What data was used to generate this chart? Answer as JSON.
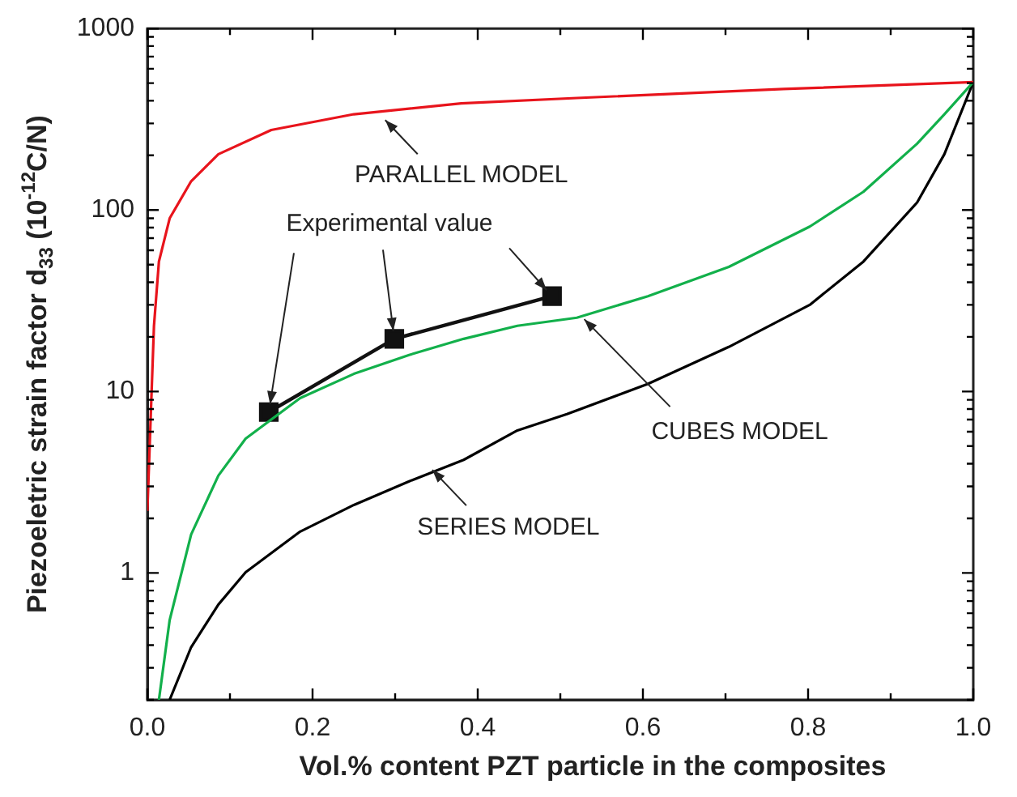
{
  "chart_data": {
    "type": "line",
    "xlabel": "Vol.% content PZT particle in the composites",
    "ylabel": "Piezoeletric strain factor d$_{33}$ (10$^{-12}$C/N)",
    "log": "y",
    "grid": false,
    "legend": false,
    "marker": "none",
    "line_style": "solid",
    "xlim": [
      0,
      1
    ],
    "ylim": [
      0.2,
      1000
    ],
    "xticks": [
      {
        "value": 0,
        "label": "0.0"
      },
      {
        "value": 0.1,
        "label": null
      },
      {
        "value": 0.2,
        "label": "0.2"
      },
      {
        "value": 0.3,
        "label": null
      },
      {
        "value": 0.4,
        "label": "0.4"
      },
      {
        "value": 0.5,
        "label": null
      },
      {
        "value": 0.6,
        "label": "0.6"
      },
      {
        "value": 0.7,
        "label": null
      },
      {
        "value": 0.8,
        "label": "0.8"
      },
      {
        "value": 0.9,
        "label": null
      },
      {
        "value": 1,
        "label": "1.0"
      }
    ],
    "yticks": [
      {
        "value": 0.2,
        "label": null
      },
      {
        "value": 0.3,
        "label": null
      },
      {
        "value": 0.4,
        "label": null
      },
      {
        "value": 0.5,
        "label": null
      },
      {
        "value": 0.6,
        "label": null
      },
      {
        "value": 0.7,
        "label": null
      },
      {
        "value": 0.8,
        "label": null
      },
      {
        "value": 0.9,
        "label": null
      },
      1,
      {
        "value": 2,
        "label": null
      },
      {
        "value": 3,
        "label": null
      },
      {
        "value": 4,
        "label": null
      },
      {
        "value": 5,
        "label": null
      },
      {
        "value": 6,
        "label": null
      },
      {
        "value": 7,
        "label": null
      },
      {
        "value": 8,
        "label": null
      },
      {
        "value": 9,
        "label": null
      },
      10,
      {
        "value": 20,
        "label": null
      },
      {
        "value": 30,
        "label": null
      },
      {
        "value": 40,
        "label": null
      },
      {
        "value": 50,
        "label": null
      },
      {
        "value": 60,
        "label": null
      },
      {
        "value": 70,
        "label": null
      },
      {
        "value": 80,
        "label": null
      },
      {
        "value": 90,
        "label": null
      },
      100,
      {
        "value": 200,
        "label": null
      },
      {
        "value": 300,
        "label": null
      },
      {
        "value": 400,
        "label": null
      },
      {
        "value": 500,
        "label": null
      },
      {
        "value": 600,
        "label": null
      },
      {
        "value": 700,
        "label": null
      },
      {
        "value": 800,
        "label": null
      },
      {
        "value": 900,
        "label": null
      },
      1000
    ],
    "series": [
      {
        "color": "#e8141c",
        "x": [
          0,
          0.008,
          0.014,
          0.027,
          0.053,
          0.086,
          0.15,
          0.25,
          0.38,
          0.52,
          0.77,
          1
        ],
        "values": [
          2.2,
          23,
          52,
          90,
          144,
          203,
          276,
          337,
          387,
          414,
          464,
          507
        ]
      },
      {
        "color": "#12b04b",
        "x": [
          0.014,
          0.027,
          0.053,
          0.086,
          0.119,
          0.185,
          0.25,
          0.317,
          0.383,
          0.448,
          0.52,
          0.606,
          0.704,
          0.802,
          0.867,
          0.932,
          0.965,
          1
        ],
        "values": [
          0.2,
          0.55,
          1.63,
          3.44,
          5.5,
          9.2,
          12.5,
          15.9,
          19.5,
          23,
          25.5,
          33.5,
          48.6,
          81,
          126,
          232,
          337,
          507
        ]
      },
      {
        "color": "#000000",
        "x": [
          0.027,
          0.053,
          0.086,
          0.119,
          0.185,
          0.25,
          0.317,
          0.383,
          0.448,
          0.508,
          0.606,
          0.704,
          0.802,
          0.867,
          0.932,
          0.965,
          1
        ],
        "values": [
          0.2,
          0.39,
          0.67,
          1.01,
          1.69,
          2.37,
          3.2,
          4.2,
          6.1,
          7.5,
          11,
          17.6,
          30,
          52,
          110,
          203,
          507
        ]
      },
      {
        "color": "#111111",
        "marker": "square",
        "x": [
          0.147,
          0.299,
          0.49
        ],
        "values": [
          7.7,
          19.5,
          33.5
        ]
      }
    ],
    "annotations": [
      {
        "text": "PARALLEL MODEL",
        "x": 0.288,
        "y": 313
      },
      {
        "text": "Experimental value",
        "x": 0.299,
        "y": 19.5
      },
      {
        "text": "CUBES MODEL",
        "x": 0.529,
        "y": 25
      },
      {
        "text": "SERIES MODEL",
        "x": 0.345,
        "y": 3.7
      }
    ]
  }
}
